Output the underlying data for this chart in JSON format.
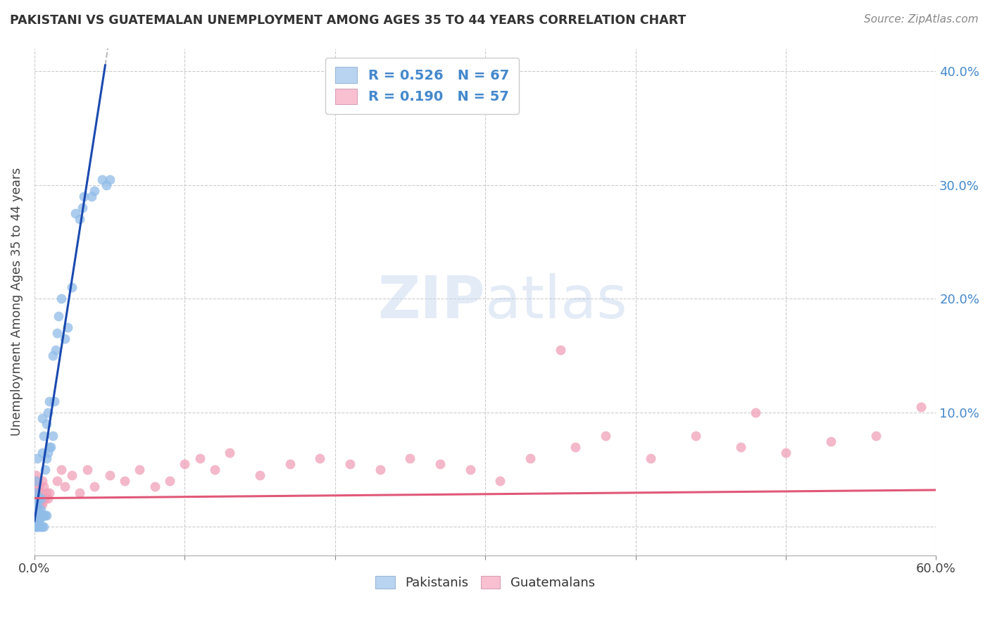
{
  "title": "PAKISTANI VS GUATEMALAN UNEMPLOYMENT AMONG AGES 35 TO 44 YEARS CORRELATION CHART",
  "source": "Source: ZipAtlas.com",
  "ylabel": "Unemployment Among Ages 35 to 44 years",
  "blue_color": "#90bce8",
  "pink_color": "#f0a0b8",
  "blue_line_color": "#1a4ab0",
  "pink_line_color": "#e05878",
  "blue_legend_color": "#b8d4f0",
  "pink_legend_color": "#f8c0d0",
  "xmin": 0.0,
  "xmax": 0.6,
  "ymin": -0.025,
  "ymax": 0.42,
  "yticks": [
    0.0,
    0.1,
    0.2,
    0.3,
    0.4
  ],
  "right_ytick_labels": [
    "",
    "10.0%",
    "20.0%",
    "30.0%",
    "40.0%"
  ],
  "blue_slope": 8.5,
  "blue_intercept": 0.005,
  "pink_slope": 0.012,
  "pink_intercept": 0.025,
  "pak_x": [
    0.001,
    0.001,
    0.001,
    0.001,
    0.001,
    0.001,
    0.001,
    0.001,
    0.001,
    0.001,
    0.002,
    0.002,
    0.002,
    0.002,
    0.002,
    0.002,
    0.002,
    0.002,
    0.003,
    0.003,
    0.003,
    0.003,
    0.003,
    0.004,
    0.004,
    0.004,
    0.005,
    0.005,
    0.005,
    0.006,
    0.006,
    0.007,
    0.007,
    0.008,
    0.008,
    0.008,
    0.009,
    0.009,
    0.01,
    0.01,
    0.011,
    0.012,
    0.012,
    0.013,
    0.014,
    0.015,
    0.016,
    0.018,
    0.02,
    0.022,
    0.025,
    0.027,
    0.03,
    0.032,
    0.033,
    0.038,
    0.04,
    0.045,
    0.048,
    0.05,
    0.001,
    0.001,
    0.002,
    0.003,
    0.004,
    0.005,
    0.006
  ],
  "pak_y": [
    0.005,
    0.007,
    0.01,
    0.012,
    0.015,
    0.017,
    0.02,
    0.025,
    0.03,
    0.04,
    0.005,
    0.007,
    0.01,
    0.012,
    0.015,
    0.02,
    0.025,
    0.06,
    0.005,
    0.008,
    0.012,
    0.015,
    0.025,
    0.008,
    0.015,
    0.025,
    0.01,
    0.065,
    0.095,
    0.01,
    0.08,
    0.01,
    0.05,
    0.01,
    0.06,
    0.09,
    0.065,
    0.1,
    0.07,
    0.11,
    0.07,
    0.08,
    0.15,
    0.11,
    0.155,
    0.17,
    0.185,
    0.2,
    0.165,
    0.175,
    0.21,
    0.275,
    0.27,
    0.28,
    0.29,
    0.29,
    0.295,
    0.305,
    0.3,
    0.305,
    0.0,
    0.0,
    0.0,
    0.0,
    0.0,
    0.0,
    0.0
  ],
  "guat_x": [
    0.001,
    0.001,
    0.001,
    0.001,
    0.001,
    0.002,
    0.002,
    0.002,
    0.003,
    0.003,
    0.004,
    0.004,
    0.005,
    0.005,
    0.006,
    0.006,
    0.007,
    0.008,
    0.009,
    0.01,
    0.015,
    0.018,
    0.02,
    0.025,
    0.03,
    0.035,
    0.04,
    0.05,
    0.06,
    0.07,
    0.08,
    0.09,
    0.1,
    0.11,
    0.12,
    0.13,
    0.15,
    0.17,
    0.19,
    0.21,
    0.23,
    0.25,
    0.27,
    0.29,
    0.31,
    0.33,
    0.36,
    0.38,
    0.41,
    0.44,
    0.47,
    0.5,
    0.53,
    0.56,
    0.59,
    0.48,
    0.35
  ],
  "guat_y": [
    0.025,
    0.03,
    0.035,
    0.04,
    0.045,
    0.025,
    0.03,
    0.04,
    0.02,
    0.035,
    0.02,
    0.03,
    0.02,
    0.04,
    0.025,
    0.035,
    0.025,
    0.03,
    0.025,
    0.03,
    0.04,
    0.05,
    0.035,
    0.045,
    0.03,
    0.05,
    0.035,
    0.045,
    0.04,
    0.05,
    0.035,
    0.04,
    0.055,
    0.06,
    0.05,
    0.065,
    0.045,
    0.055,
    0.06,
    0.055,
    0.05,
    0.06,
    0.055,
    0.05,
    0.04,
    0.06,
    0.07,
    0.08,
    0.06,
    0.08,
    0.07,
    0.065,
    0.075,
    0.08,
    0.105,
    0.1,
    0.155
  ]
}
